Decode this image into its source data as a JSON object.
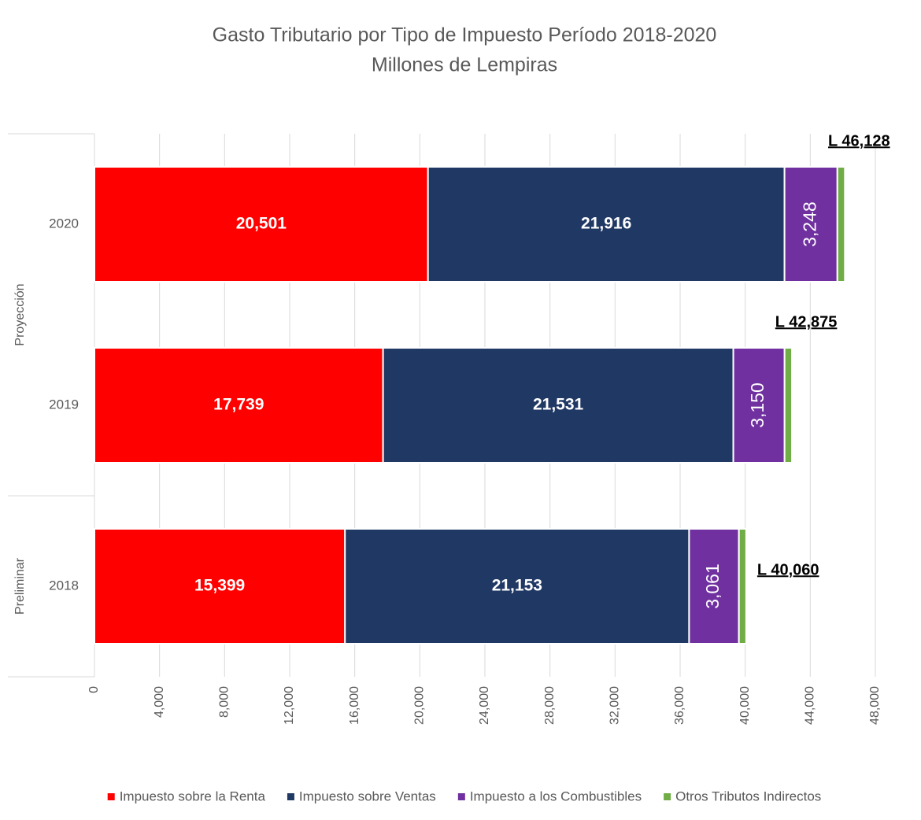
{
  "chart_data": {
    "type": "bar",
    "orientation": "horizontal",
    "stacked": true,
    "title": "Gasto Tributario por Tipo de Impuesto Período 2018-2020",
    "subtitle": "Millones de Lempiras",
    "categories": [
      "2018",
      "2019",
      "2020"
    ],
    "groups": [
      {
        "label": "Preliminar",
        "count": 1
      },
      {
        "label": "Proyección",
        "count": 2
      }
    ],
    "series": [
      {
        "name": "Impuesto sobre la Renta",
        "color": "#ff0000",
        "values": [
          15399,
          17739,
          20501
        ],
        "value_labels": [
          "15,399",
          "17,739",
          "20,501"
        ]
      },
      {
        "name": "Impuesto sobre Ventas",
        "color": "#203864",
        "values": [
          21153,
          21531,
          21916
        ],
        "value_labels": [
          "21,153",
          "21,531",
          "21,916"
        ]
      },
      {
        "name": "Impuesto a los Combustibles",
        "color": "#7030a0",
        "values": [
          3061,
          3150,
          3248
        ],
        "value_labels": [
          "3,061",
          "3,150",
          "3,248"
        ]
      },
      {
        "name": "Otros Tributos Indirectos",
        "color": "#70ad47",
        "values": [
          447,
          455,
          463
        ]
      }
    ],
    "total_labels": [
      "L 40,060",
      "L 42,875",
      "L 46,128"
    ],
    "xlim": [
      0,
      48000
    ],
    "xticks": [
      0,
      {
        "value": 4000,
        "label": "4,000"
      },
      {
        "value": 8000,
        "label": "8,000"
      },
      {
        "value": 12000,
        "label": "12,000"
      },
      {
        "value": 16000,
        "label": "16,000"
      },
      {
        "value": 20000,
        "label": "20,000"
      },
      {
        "value": 24000,
        "label": "24,000"
      },
      {
        "value": 28000,
        "label": "28,000"
      },
      {
        "value": 32000,
        "label": "32,000"
      },
      {
        "value": 36000,
        "label": "36,000"
      },
      {
        "value": 40000,
        "label": "40,000"
      },
      {
        "value": 44000,
        "label": "44,000"
      },
      {
        "value": 48000,
        "label": "48,000"
      }
    ],
    "grid": true,
    "legend": "bottom"
  }
}
